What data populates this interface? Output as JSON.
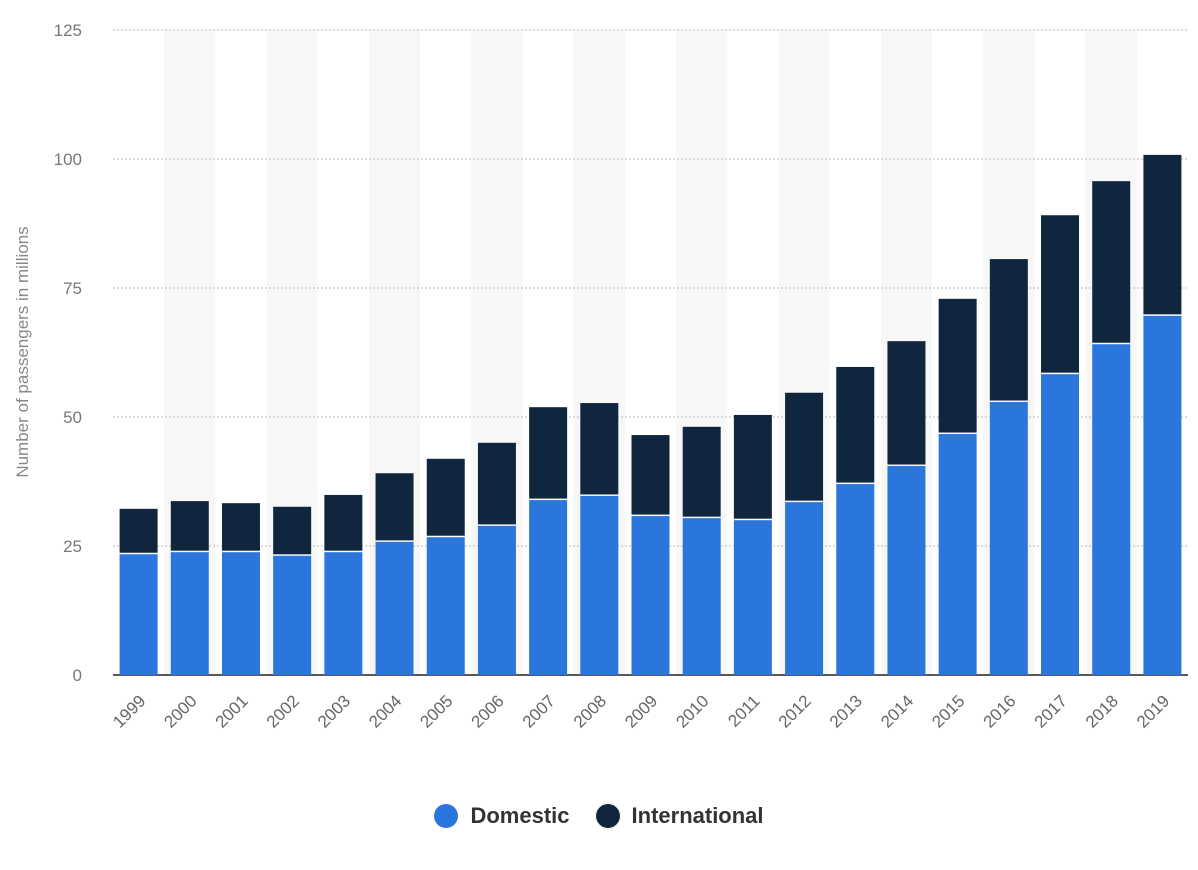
{
  "chart_data": {
    "type": "bar",
    "stacked": true,
    "title": "",
    "xlabel": "",
    "ylabel": "Number of passengers in millions",
    "ylim": [
      0,
      125
    ],
    "yticks": [
      0,
      25,
      50,
      75,
      100,
      125
    ],
    "grid": true,
    "legend_position": "bottom",
    "categories": [
      "1999",
      "2000",
      "2001",
      "2002",
      "2003",
      "2004",
      "2005",
      "2006",
      "2007",
      "2008",
      "2009",
      "2010",
      "2011",
      "2012",
      "2013",
      "2014",
      "2015",
      "2016",
      "2017",
      "2018",
      "2019"
    ],
    "series": [
      {
        "name": "Domestic",
        "color": "#2a76dd",
        "values": [
          23.4,
          23.8,
          23.8,
          23.1,
          23.8,
          25.8,
          26.7,
          28.9,
          33.9,
          34.7,
          30.8,
          30.4,
          30.0,
          33.5,
          37.0,
          40.5,
          46.7,
          52.9,
          58.3,
          64.1,
          69.6
        ]
      },
      {
        "name": "International",
        "color": "#10263f",
        "values": [
          8.8,
          9.9,
          9.5,
          9.5,
          11.1,
          13.3,
          15.2,
          16.1,
          18.0,
          18.0,
          15.7,
          17.7,
          20.4,
          21.2,
          22.7,
          24.2,
          26.2,
          27.7,
          30.8,
          31.6,
          31.2
        ]
      }
    ]
  }
}
